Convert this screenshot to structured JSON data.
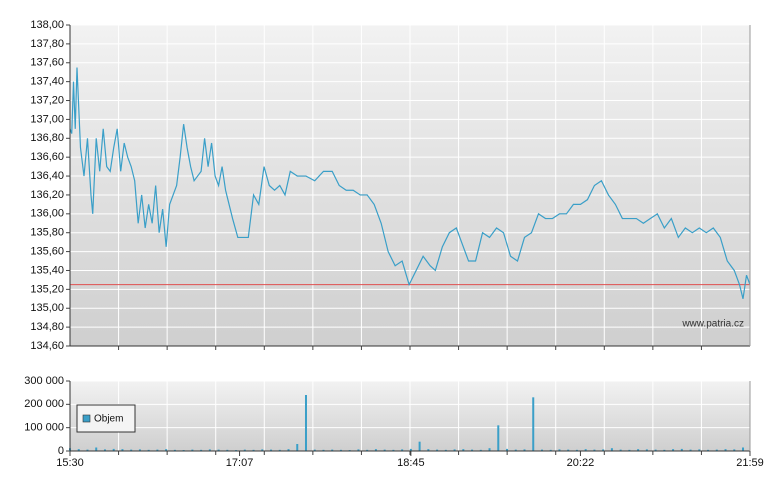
{
  "chart_data": [
    {
      "type": "line",
      "x": [
        "15:30",
        "15:31",
        "15:32",
        "15:33",
        "15:34",
        "15:36",
        "15:38",
        "15:40",
        "15:42",
        "15:43",
        "15:45",
        "15:47",
        "15:49",
        "15:51",
        "15:53",
        "15:55",
        "15:57",
        "15:59",
        "16:01",
        "16:03",
        "16:05",
        "16:07",
        "16:09",
        "16:11",
        "16:13",
        "16:15",
        "16:17",
        "16:19",
        "16:21",
        "16:23",
        "16:25",
        "16:27",
        "16:29",
        "16:31",
        "16:33",
        "16:35",
        "16:37",
        "16:39",
        "16:41",
        "16:43",
        "16:45",
        "16:47",
        "16:49",
        "16:51",
        "16:53",
        "16:55",
        "16:57",
        "16:59",
        "17:03",
        "17:06",
        "17:12",
        "17:15",
        "17:18",
        "17:21",
        "17:24",
        "17:27",
        "17:30",
        "17:33",
        "17:36",
        "17:40",
        "17:45",
        "17:50",
        "17:55",
        "18:00",
        "18:04",
        "18:08",
        "18:12",
        "18:16",
        "18:20",
        "18:24",
        "18:28",
        "18:32",
        "18:36",
        "18:40",
        "18:44",
        "18:48",
        "18:52",
        "18:56",
        "18:59",
        "19:03",
        "19:07",
        "19:11",
        "19:14",
        "19:18",
        "19:22",
        "19:26",
        "19:30",
        "19:34",
        "19:38",
        "19:42",
        "19:46",
        "19:50",
        "19:54",
        "19:58",
        "20:02",
        "20:06",
        "20:10",
        "20:14",
        "20:18",
        "20:22",
        "20:26",
        "20:30",
        "20:34",
        "20:38",
        "20:42",
        "20:46",
        "20:50",
        "20:54",
        "20:58",
        "21:02",
        "21:06",
        "21:10",
        "21:14",
        "21:18",
        "21:22",
        "21:26",
        "21:30",
        "21:34",
        "21:38",
        "21:42",
        "21:46",
        "21:50",
        "21:53",
        "21:55",
        "21:57",
        "21:59"
      ],
      "values": [
        136.9,
        136.85,
        137.4,
        136.9,
        137.55,
        136.7,
        136.4,
        136.8,
        136.2,
        136.0,
        136.8,
        136.45,
        136.9,
        136.5,
        136.45,
        136.7,
        136.9,
        136.45,
        136.75,
        136.6,
        136.5,
        136.35,
        135.9,
        136.2,
        135.85,
        136.1,
        135.9,
        136.3,
        135.8,
        136.05,
        135.65,
        136.1,
        136.2,
        136.3,
        136.6,
        136.95,
        136.7,
        136.5,
        136.35,
        136.4,
        136.45,
        136.8,
        136.5,
        136.75,
        136.4,
        136.3,
        136.5,
        136.25,
        135.95,
        135.75,
        135.75,
        136.2,
        136.1,
        136.5,
        136.3,
        136.25,
        136.3,
        136.2,
        136.45,
        136.4,
        136.4,
        136.35,
        136.45,
        136.45,
        136.3,
        136.25,
        136.25,
        136.2,
        136.2,
        136.1,
        135.9,
        135.6,
        135.45,
        135.5,
        135.25,
        135.4,
        135.55,
        135.45,
        135.4,
        135.65,
        135.8,
        135.85,
        135.7,
        135.5,
        135.5,
        135.8,
        135.75,
        135.85,
        135.8,
        135.55,
        135.5,
        135.75,
        135.8,
        136.0,
        135.95,
        135.95,
        136.0,
        136.0,
        136.1,
        136.1,
        136.15,
        136.3,
        136.35,
        136.2,
        136.1,
        135.95,
        135.95,
        135.95,
        135.9,
        135.95,
        136.0,
        135.85,
        135.95,
        135.75,
        135.85,
        135.8,
        135.85,
        135.8,
        135.85,
        135.75,
        135.5,
        135.4,
        135.25,
        135.1,
        135.35,
        135.25
      ],
      "color": "#3a9fc8",
      "xlim": [
        "15:30",
        "21:59"
      ],
      "ylim": [
        134.6,
        138
      ],
      "yticks": [
        {
          "value": 134.6,
          "label": "134,60"
        },
        {
          "value": 134.8,
          "label": "134,80"
        },
        {
          "value": 135,
          "label": "135,00"
        },
        {
          "value": 135.2,
          "label": "135,20"
        },
        {
          "value": 135.4,
          "label": "135,40"
        },
        {
          "value": 135.6,
          "label": "135,60"
        },
        {
          "value": 135.8,
          "label": "135,80"
        },
        {
          "value": 136,
          "label": "136,00"
        },
        {
          "value": 136.2,
          "label": "136,20"
        },
        {
          "value": 136.4,
          "label": "136,40"
        },
        {
          "value": 136.6,
          "label": "136,60"
        },
        {
          "value": 136.8,
          "label": "136,80"
        },
        {
          "value": 137,
          "label": "137,00"
        },
        {
          "value": 137.2,
          "label": "137,20"
        },
        {
          "value": 137.4,
          "label": "137,40"
        },
        {
          "value": 137.6,
          "label": "137,60"
        },
        {
          "value": 137.8,
          "label": "137,80"
        },
        {
          "value": 138,
          "label": "138,00"
        }
      ],
      "reference_line": {
        "value": 135.25,
        "color": "#e05050"
      },
      "watermark": "www.patria.cz",
      "grid": true
    },
    {
      "type": "bar",
      "x": [
        "15:30",
        "15:35",
        "15:40",
        "15:45",
        "15:50",
        "15:55",
        "16:00",
        "16:05",
        "16:10",
        "16:15",
        "16:20",
        "16:25",
        "16:30",
        "16:35",
        "16:40",
        "16:45",
        "16:50",
        "16:55",
        "17:00",
        "17:05",
        "17:10",
        "17:15",
        "17:20",
        "17:25",
        "17:30",
        "17:35",
        "17:40",
        "17:45",
        "17:50",
        "17:55",
        "18:00",
        "18:05",
        "18:10",
        "18:15",
        "18:20",
        "18:25",
        "18:30",
        "18:35",
        "18:40",
        "18:45",
        "18:50",
        "18:55",
        "19:00",
        "19:05",
        "19:10",
        "19:15",
        "19:20",
        "19:25",
        "19:30",
        "19:35",
        "19:40",
        "19:45",
        "19:50",
        "19:55",
        "20:00",
        "20:05",
        "20:10",
        "20:15",
        "20:20",
        "20:25",
        "20:30",
        "20:35",
        "20:40",
        "20:45",
        "20:50",
        "20:55",
        "21:00",
        "21:05",
        "21:10",
        "21:15",
        "21:20",
        "21:25",
        "21:30",
        "21:35",
        "21:40",
        "21:45",
        "21:50",
        "21:55"
      ],
      "series": [
        {
          "name": "Objem",
          "color": "#3a9fc8",
          "values": [
            12000,
            8000,
            6000,
            15000,
            7000,
            9000,
            8000,
            6000,
            7000,
            5000,
            6000,
            8000,
            5000,
            4000,
            6000,
            5000,
            7000,
            6000,
            5000,
            4000,
            6000,
            5000,
            7000,
            6000,
            5000,
            8000,
            30000,
            240000,
            6000,
            5000,
            6000,
            5000,
            4000,
            7000,
            5000,
            8000,
            6000,
            5000,
            7000,
            9000,
            40000,
            8000,
            6000,
            5000,
            7000,
            8000,
            6000,
            5000,
            12000,
            110000,
            9000,
            6000,
            7000,
            230000,
            6000,
            5000,
            7000,
            6000,
            5000,
            8000,
            6000,
            7000,
            12000,
            6000,
            5000,
            8000,
            7000,
            6000,
            5000,
            8000,
            9000,
            6000,
            7000,
            5000,
            6000,
            8000,
            7000,
            15000
          ]
        }
      ],
      "xlim": [
        "15:30",
        "21:59"
      ],
      "xticks": [
        "15:30",
        "17:07",
        "18:45",
        "20:22",
        "21:59"
      ],
      "ylim": [
        0,
        300000
      ],
      "yticks": [
        0,
        {
          "value": 100000,
          "label": "100 000"
        },
        {
          "value": 200000,
          "label": "200 000"
        },
        {
          "value": 300000,
          "label": "300 000"
        }
      ],
      "legend": "upper-left",
      "grid": true
    }
  ]
}
